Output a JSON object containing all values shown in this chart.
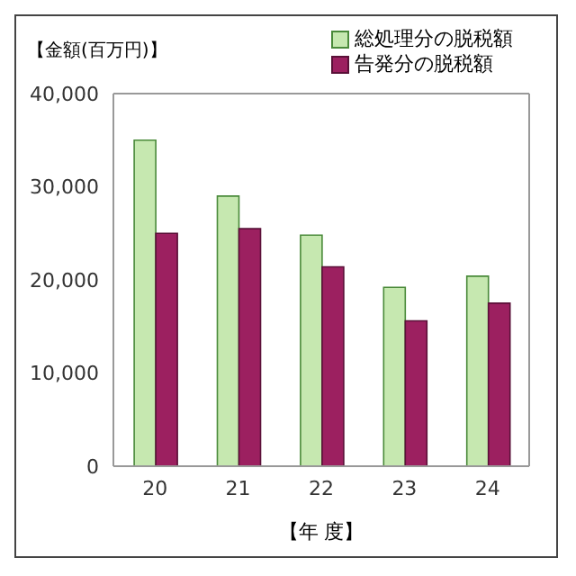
{
  "chart_data": {
    "type": "bar",
    "ylabel": "【金額(百万円)】",
    "xlabel": "【年 度】",
    "categories": [
      "20",
      "21",
      "22",
      "23",
      "24"
    ],
    "series": [
      {
        "name": "総処理分の脱税額",
        "color": "#c6e8b0",
        "values": [
          35000,
          29000,
          24800,
          19200,
          20400
        ]
      },
      {
        "name": "告発分の脱税額",
        "color": "#9c2060",
        "values": [
          25000,
          25500,
          21400,
          15600,
          17500
        ]
      }
    ],
    "ylim": [
      0,
      40000
    ],
    "yticks": [
      0,
      {
        "value": 10000,
        "label": "10,000"
      },
      {
        "value": 20000,
        "label": "20,000"
      },
      {
        "value": 30000,
        "label": "30,000"
      },
      {
        "value": 40000,
        "label": "40,000"
      }
    ],
    "grid": false,
    "legend": "top right"
  }
}
